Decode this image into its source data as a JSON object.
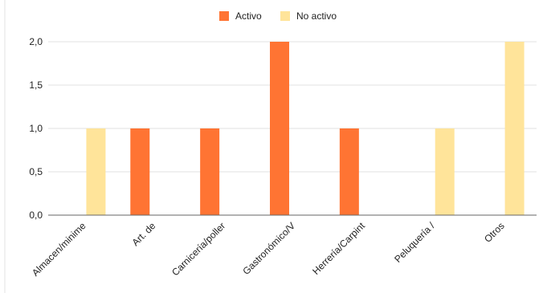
{
  "chart_data": {
    "type": "bar",
    "title": "",
    "xlabel": "",
    "ylabel": "",
    "categories": [
      "Almacen/minime",
      "Art. de",
      "Carnicería/poller",
      "Gastronómico/V",
      "Herrería/Carpint",
      "Peluquería /",
      "Otros"
    ],
    "series": [
      {
        "name": "Activo",
        "color": "#ff7433",
        "values": [
          0,
          1,
          1,
          2,
          1,
          0,
          0
        ]
      },
      {
        "name": "No activo",
        "color": "#ffe49a",
        "values": [
          1,
          0,
          0,
          0,
          0,
          1,
          2
        ]
      }
    ],
    "ylim": [
      0,
      2
    ],
    "yticks": [
      "0,0",
      "0,5",
      "1,0",
      "1,5",
      "2,0"
    ],
    "grid": true,
    "legend_position": "top"
  }
}
